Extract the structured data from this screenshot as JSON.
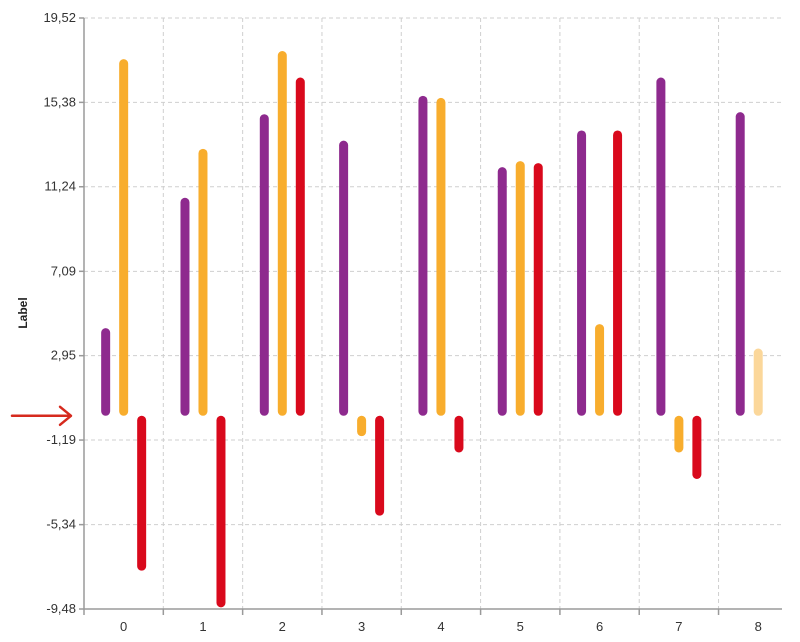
{
  "chart_data": {
    "type": "bar",
    "orientation": "vertical-range",
    "ylabel": "Label",
    "xlabel": "",
    "ylim": [
      -9.48,
      19.52
    ],
    "yticks": [
      "19,52",
      "15,38",
      "11,24",
      "7,09",
      "2,95",
      "-1,19",
      "-5,34",
      "-9,48"
    ],
    "ytick_values": [
      19.52,
      15.38,
      11.24,
      7.09,
      2.95,
      -1.19,
      -5.34,
      -9.48
    ],
    "categories": [
      "0",
      "1",
      "2",
      "3",
      "4",
      "5",
      "6",
      "7",
      "8"
    ],
    "grid": true,
    "series": [
      {
        "color": "#8e2a8e",
        "values": [
          4.3,
          10.7,
          14.8,
          13.5,
          15.7,
          12.2,
          14.0,
          16.6,
          14.9
        ]
      },
      {
        "color": "#f8ad2d",
        "values": [
          17.5,
          13.1,
          17.9,
          -1.0,
          15.6,
          12.5,
          4.5,
          -1.8,
          3.3
        ]
      },
      {
        "color": "#d9091c",
        "values": [
          -7.6,
          -9.4,
          16.6,
          -4.9,
          -1.8,
          12.4,
          14.0,
          -3.1,
          null
        ]
      }
    ],
    "faded_bar": {
      "series": 1,
      "category": 8,
      "color": "#fbd79a"
    },
    "marker": {
      "type": "arrow",
      "color": "#d62a1e",
      "points_to": 0
    }
  }
}
